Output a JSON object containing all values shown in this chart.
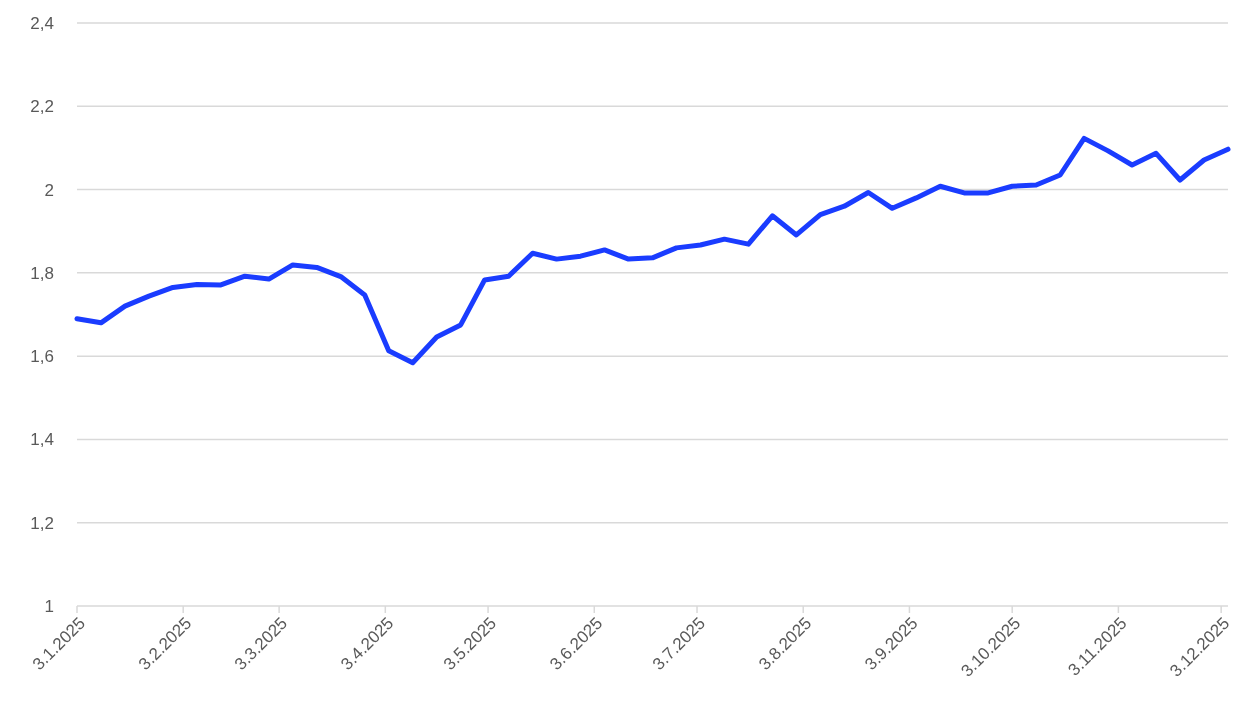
{
  "chart_data": {
    "type": "line",
    "color": "#1a3cff",
    "line_style": "solid",
    "grid": "y",
    "x": [
      "2025-01-03",
      "2025-01-10",
      "2025-01-17",
      "2025-01-24",
      "2025-01-31",
      "2025-02-07",
      "2025-02-14",
      "2025-02-21",
      "2025-02-28",
      "2025-03-07",
      "2025-03-14",
      "2025-03-21",
      "2025-03-28",
      "2025-04-04",
      "2025-04-11",
      "2025-04-18",
      "2025-04-25",
      "2025-05-02",
      "2025-05-09",
      "2025-05-16",
      "2025-05-23",
      "2025-05-30",
      "2025-06-06",
      "2025-06-13",
      "2025-06-20",
      "2025-06-27",
      "2025-07-04",
      "2025-07-11",
      "2025-07-18",
      "2025-07-25",
      "2025-08-01",
      "2025-08-08",
      "2025-08-15",
      "2025-08-22",
      "2025-08-29",
      "2025-09-05",
      "2025-09-12",
      "2025-09-19",
      "2025-09-26",
      "2025-10-03",
      "2025-10-10",
      "2025-10-17",
      "2025-10-24",
      "2025-10-31",
      "2025-11-07",
      "2025-11-14",
      "2025-11-21",
      "2025-11-28",
      "2025-12-05"
    ],
    "values": [
      1.69,
      1.68,
      1.72,
      1.744,
      1.765,
      1.772,
      1.771,
      1.792,
      1.785,
      1.819,
      1.813,
      1.791,
      1.747,
      1.613,
      1.584,
      1.646,
      1.675,
      1.783,
      1.792,
      1.847,
      1.833,
      1.84,
      1.855,
      1.833,
      1.836,
      1.86,
      1.867,
      1.881,
      1.869,
      1.937,
      1.891,
      1.94,
      1.96,
      1.993,
      1.955,
      1.98,
      2.008,
      1.992,
      1.992,
      2.008,
      2.011,
      2.035,
      2.123,
      2.093,
      2.059,
      2.087,
      2.023,
      2.071,
      2.097
    ],
    "xlim": [
      "2025-01-03",
      "2025-12-05"
    ],
    "xticks": [
      {
        "value": "2025-01-03",
        "label": "3.1.2025"
      },
      {
        "value": "2025-02-03",
        "label": "3.2.2025"
      },
      {
        "value": "2025-03-03",
        "label": "3.3.2025"
      },
      {
        "value": "2025-04-03",
        "label": "3.4.2025"
      },
      {
        "value": "2025-05-03",
        "label": "3.5.2025"
      },
      {
        "value": "2025-06-03",
        "label": "3.6.2025"
      },
      {
        "value": "2025-07-03",
        "label": "3.7.2025"
      },
      {
        "value": "2025-08-03",
        "label": "3.8.2025"
      },
      {
        "value": "2025-09-03",
        "label": "3.9.2025"
      },
      {
        "value": "2025-10-03",
        "label": "3.10.2025"
      },
      {
        "value": "2025-11-03",
        "label": "3.11.2025"
      },
      {
        "value": "2025-12-03",
        "label": "3.12.2025"
      }
    ],
    "ylim": [
      1,
      2.4
    ],
    "yticks": [
      1,
      {
        "value": 1.2,
        "label": "1,2"
      },
      {
        "value": 1.4,
        "label": "1,4"
      },
      {
        "value": 1.6,
        "label": "1,6"
      },
      {
        "value": 1.8,
        "label": "1,8"
      },
      2,
      {
        "value": 2.2,
        "label": "2,2"
      },
      {
        "value": 2.4,
        "label": "2,4"
      }
    ]
  }
}
